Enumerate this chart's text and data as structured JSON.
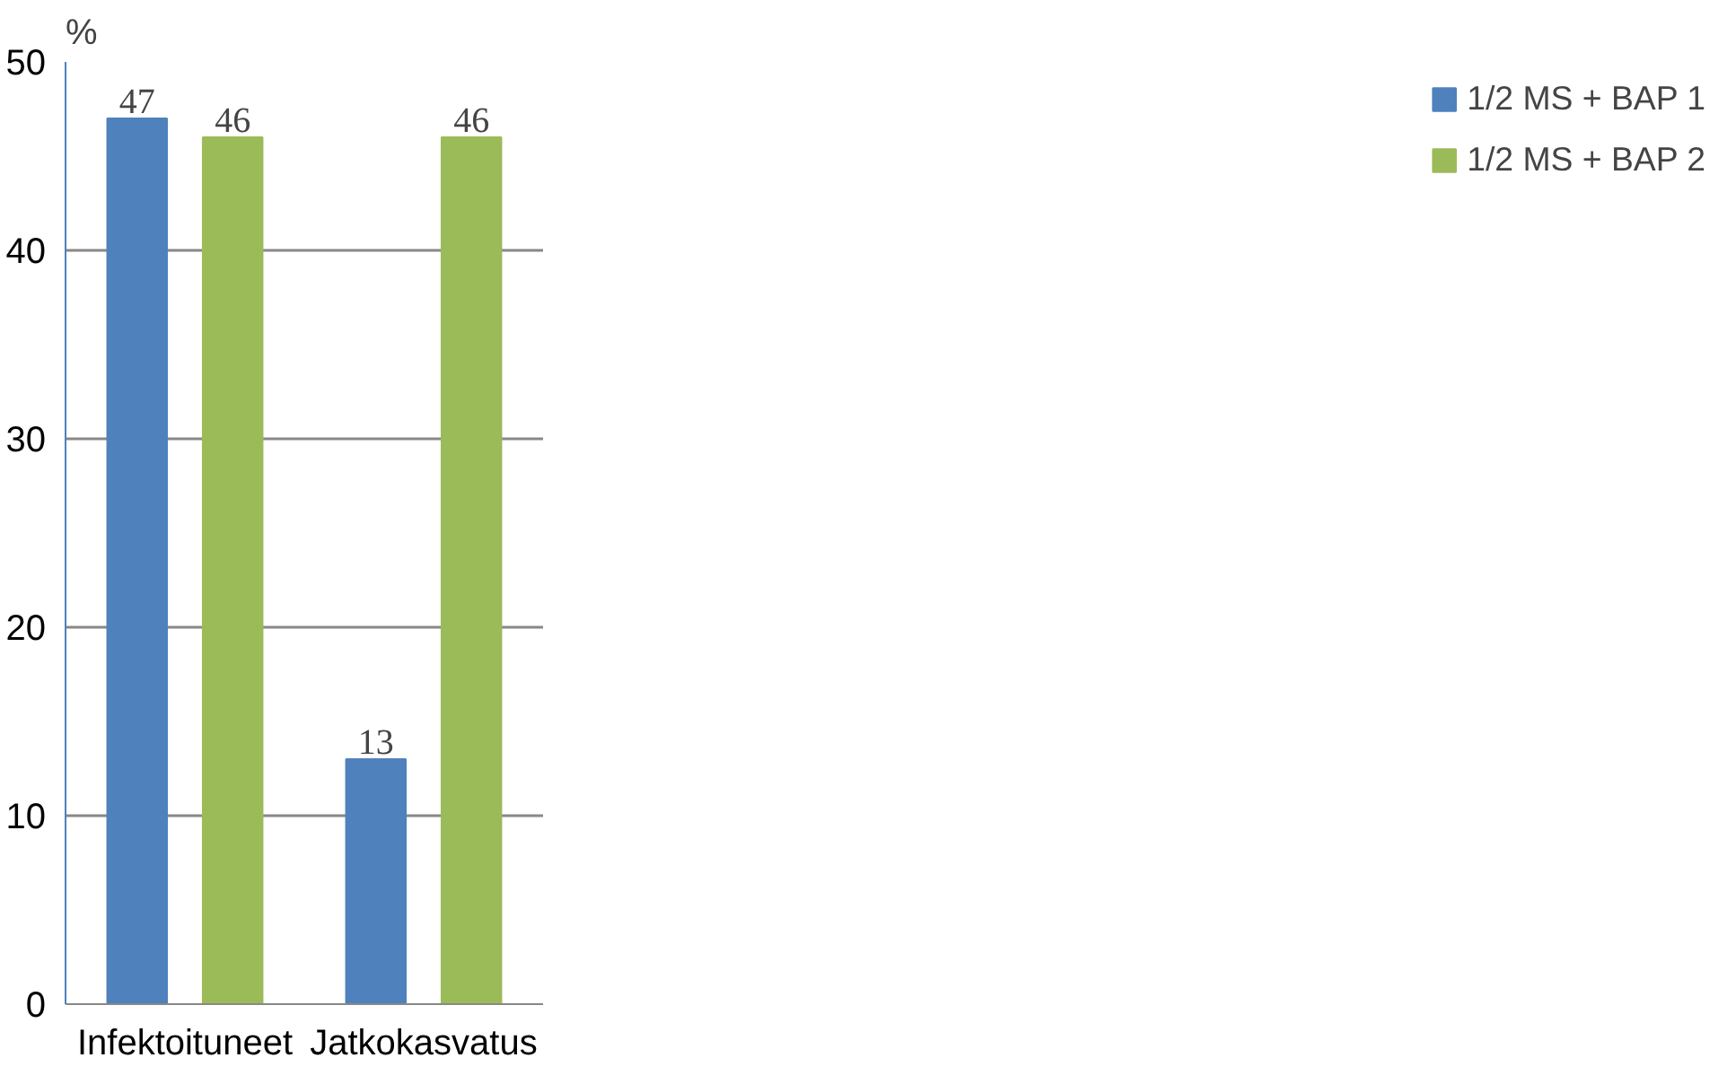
{
  "chart_data": {
    "type": "bar",
    "ylabel": "%",
    "categories": [
      "Infektoituneet",
      "Jatkokasvatus"
    ],
    "series": [
      {
        "name": "1/2 MS + BAP 1",
        "color": "#4f81bd",
        "values": [
          47,
          13
        ]
      },
      {
        "name": "1/2 MS + BAP 2",
        "color": "#9bbb59",
        "values": [
          46,
          46
        ]
      }
    ],
    "ylim": [
      0,
      50
    ],
    "yticks": [
      0,
      10,
      20,
      30,
      40,
      50
    ],
    "grid": "y",
    "legend": "right",
    "data_labels": true
  }
}
